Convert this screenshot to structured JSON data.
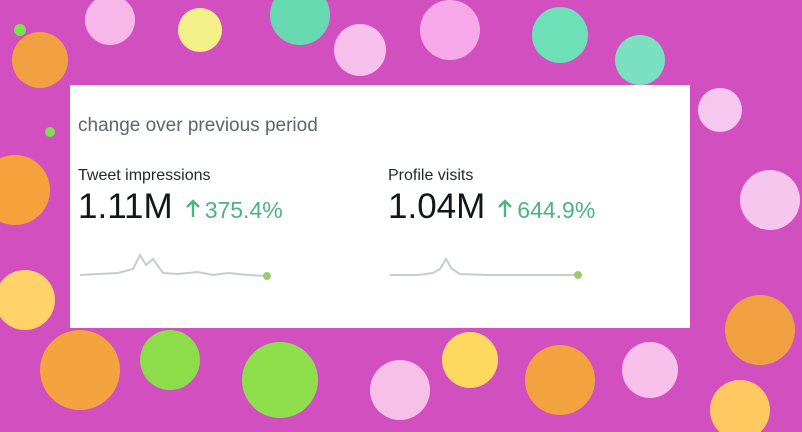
{
  "header": {
    "title": "change over previous period"
  },
  "metrics": [
    {
      "label": "Tweet impressions",
      "value": "1.11M",
      "change": "375.4%"
    },
    {
      "label": "Profile visits",
      "value": "1.04M",
      "change": "644.9%"
    }
  ]
}
